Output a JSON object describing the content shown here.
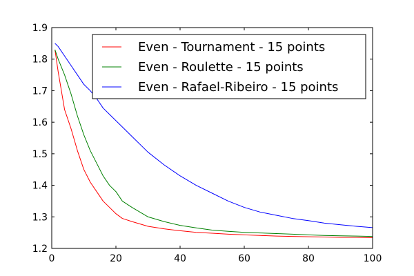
{
  "chart_data": {
    "type": "line",
    "title": "",
    "xlabel": "",
    "ylabel": "",
    "xlim": [
      0,
      100
    ],
    "ylim": [
      1.2,
      1.9
    ],
    "xticks": [
      0,
      20,
      40,
      60,
      80,
      100
    ],
    "yticks": [
      1.2,
      1.3,
      1.4,
      1.5,
      1.6,
      1.7,
      1.8,
      1.9
    ],
    "xtick_labels": [
      "0",
      "20",
      "40",
      "60",
      "80",
      "100"
    ],
    "ytick_labels": [
      "1.2",
      "1.3",
      "1.4",
      "1.5",
      "1.6",
      "1.7",
      "1.8",
      "1.9"
    ],
    "grid": false,
    "legend_position": "top-right",
    "x": [
      1,
      2,
      4,
      6,
      8,
      10,
      12,
      14,
      16,
      18,
      20,
      22,
      25,
      30,
      35,
      40,
      45,
      50,
      55,
      60,
      65,
      70,
      75,
      80,
      85,
      90,
      95,
      100
    ],
    "series": [
      {
        "name": "Even - Tournament - 15 points",
        "color": "#ff0000",
        "values": [
          1.83,
          1.76,
          1.64,
          1.58,
          1.51,
          1.45,
          1.41,
          1.38,
          1.35,
          1.33,
          1.31,
          1.295,
          1.285,
          1.27,
          1.262,
          1.256,
          1.251,
          1.248,
          1.245,
          1.243,
          1.241,
          1.239,
          1.238,
          1.237,
          1.236,
          1.235,
          1.235,
          1.234
        ]
      },
      {
        "name": "Even - Roulette - 15 points",
        "color": "#008000",
        "values": [
          1.83,
          1.8,
          1.75,
          1.69,
          1.62,
          1.56,
          1.51,
          1.47,
          1.43,
          1.4,
          1.38,
          1.35,
          1.33,
          1.3,
          1.285,
          1.273,
          1.265,
          1.258,
          1.254,
          1.251,
          1.249,
          1.247,
          1.245,
          1.243,
          1.241,
          1.24,
          1.239,
          1.238
        ]
      },
      {
        "name": "Even - Rafael-Ribeiro - 15 points",
        "color": "#0000ff",
        "values": [
          1.85,
          1.84,
          1.81,
          1.78,
          1.75,
          1.72,
          1.7,
          1.675,
          1.645,
          1.625,
          1.605,
          1.585,
          1.555,
          1.505,
          1.465,
          1.43,
          1.4,
          1.375,
          1.35,
          1.33,
          1.315,
          1.305,
          1.295,
          1.288,
          1.28,
          1.275,
          1.27,
          1.266
        ]
      }
    ]
  }
}
